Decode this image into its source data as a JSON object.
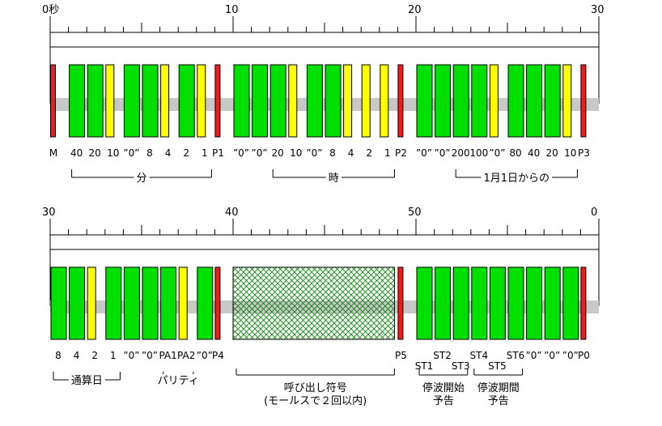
{
  "colors": {
    "marker": "#ee1c1c",
    "bit_green": "#00e000",
    "bit_yellow": "#ffff00",
    "axis_band": "#c8c8c8",
    "hatch": "#008000",
    "outline": "#000000"
  },
  "rows": [
    {
      "id": "row1",
      "start_sec": 0,
      "tick_labels": [
        "0秒",
        "10",
        "20",
        "30"
      ],
      "cells": [
        {
          "sec": 0,
          "kind": "marker",
          "label": "M"
        },
        {
          "sec": 1,
          "kind": "green",
          "label": "40"
        },
        {
          "sec": 2,
          "kind": "green",
          "label": "20"
        },
        {
          "sec": 3,
          "kind": "yellow",
          "label": "10"
        },
        {
          "sec": 4,
          "kind": "green",
          "label": "”0”"
        },
        {
          "sec": 5,
          "kind": "green",
          "label": "8"
        },
        {
          "sec": 6,
          "kind": "yellow",
          "label": "4"
        },
        {
          "sec": 7,
          "kind": "green",
          "label": "2"
        },
        {
          "sec": 8,
          "kind": "yellow",
          "label": "1"
        },
        {
          "sec": 9,
          "kind": "marker",
          "label": "P1"
        },
        {
          "sec": 10,
          "kind": "green",
          "label": "”0”"
        },
        {
          "sec": 11,
          "kind": "green",
          "label": "”0”"
        },
        {
          "sec": 12,
          "kind": "green",
          "label": "20"
        },
        {
          "sec": 13,
          "kind": "yellow",
          "label": "10"
        },
        {
          "sec": 14,
          "kind": "green",
          "label": "”0”"
        },
        {
          "sec": 15,
          "kind": "green",
          "label": "8"
        },
        {
          "sec": 16,
          "kind": "yellow",
          "label": "4"
        },
        {
          "sec": 17,
          "kind": "yellow",
          "label": "2"
        },
        {
          "sec": 18,
          "kind": "yellow",
          "label": "1"
        },
        {
          "sec": 19,
          "kind": "marker",
          "label": "P2"
        },
        {
          "sec": 20,
          "kind": "green",
          "label": "”0”"
        },
        {
          "sec": 21,
          "kind": "green",
          "label": "”0”"
        },
        {
          "sec": 22,
          "kind": "green",
          "label": "200"
        },
        {
          "sec": 23,
          "kind": "green",
          "label": "100"
        },
        {
          "sec": 24,
          "kind": "yellow",
          "label": "”0”"
        },
        {
          "sec": 25,
          "kind": "green",
          "label": "80"
        },
        {
          "sec": 26,
          "kind": "green",
          "label": "40"
        },
        {
          "sec": 27,
          "kind": "green",
          "label": "20"
        },
        {
          "sec": 28,
          "kind": "yellow",
          "label": "10"
        },
        {
          "sec": 29,
          "kind": "marker",
          "label": "P3"
        }
      ],
      "groups": [
        {
          "from": 1,
          "to": 8,
          "label": "分"
        },
        {
          "from": 12,
          "to": 18,
          "label": "時"
        },
        {
          "from": 22,
          "to": 28,
          "label": "1月1日からの"
        }
      ]
    },
    {
      "id": "row2",
      "start_sec": 30,
      "tick_labels": [
        "30",
        "40",
        "50",
        "0"
      ],
      "cells": [
        {
          "sec": 30,
          "kind": "green",
          "label": "8"
        },
        {
          "sec": 31,
          "kind": "green",
          "label": "4"
        },
        {
          "sec": 32,
          "kind": "yellow",
          "label": "2"
        },
        {
          "sec": 33,
          "kind": "green",
          "label": "1"
        },
        {
          "sec": 34,
          "kind": "green",
          "label": "”0”"
        },
        {
          "sec": 35,
          "kind": "green",
          "label": "”0”"
        },
        {
          "sec": 36,
          "kind": "green",
          "label": "PA1"
        },
        {
          "sec": 37,
          "kind": "yellow",
          "label": "PA2"
        },
        {
          "sec": 38,
          "kind": "green",
          "label": "”0”"
        },
        {
          "sec": 39,
          "kind": "marker",
          "label": "P4"
        },
        {
          "sec": 40,
          "kind": "hatch",
          "label": ""
        },
        {
          "sec": 49,
          "kind": "marker",
          "label": "P5"
        },
        {
          "sec": 50,
          "kind": "green",
          "label": "ST1"
        },
        {
          "sec": 51,
          "kind": "green",
          "label": "ST2"
        },
        {
          "sec": 52,
          "kind": "green",
          "label": "ST3"
        },
        {
          "sec": 53,
          "kind": "green",
          "label": "ST4"
        },
        {
          "sec": 54,
          "kind": "green",
          "label": "ST5"
        },
        {
          "sec": 55,
          "kind": "green",
          "label": "ST6"
        },
        {
          "sec": 56,
          "kind": "green",
          "label": "”0”"
        },
        {
          "sec": 57,
          "kind": "green",
          "label": "”0”"
        },
        {
          "sec": 58,
          "kind": "green",
          "label": "”0”"
        },
        {
          "sec": 59,
          "kind": "marker",
          "label": "P0"
        }
      ],
      "groups": [
        {
          "from": 30,
          "to": 33,
          "label": "通算日"
        },
        {
          "from": 36,
          "to": 37,
          "label": "パリティ"
        },
        {
          "from": 40,
          "to": 48,
          "label": "呼び出し符号",
          "sub": "(モールスで２回以内)"
        },
        {
          "from": 50,
          "to": 52,
          "label": "停波開始",
          "sub": "予告"
        },
        {
          "from": 53,
          "to": 55,
          "label": "停波期間",
          "sub": "予告"
        }
      ]
    }
  ]
}
